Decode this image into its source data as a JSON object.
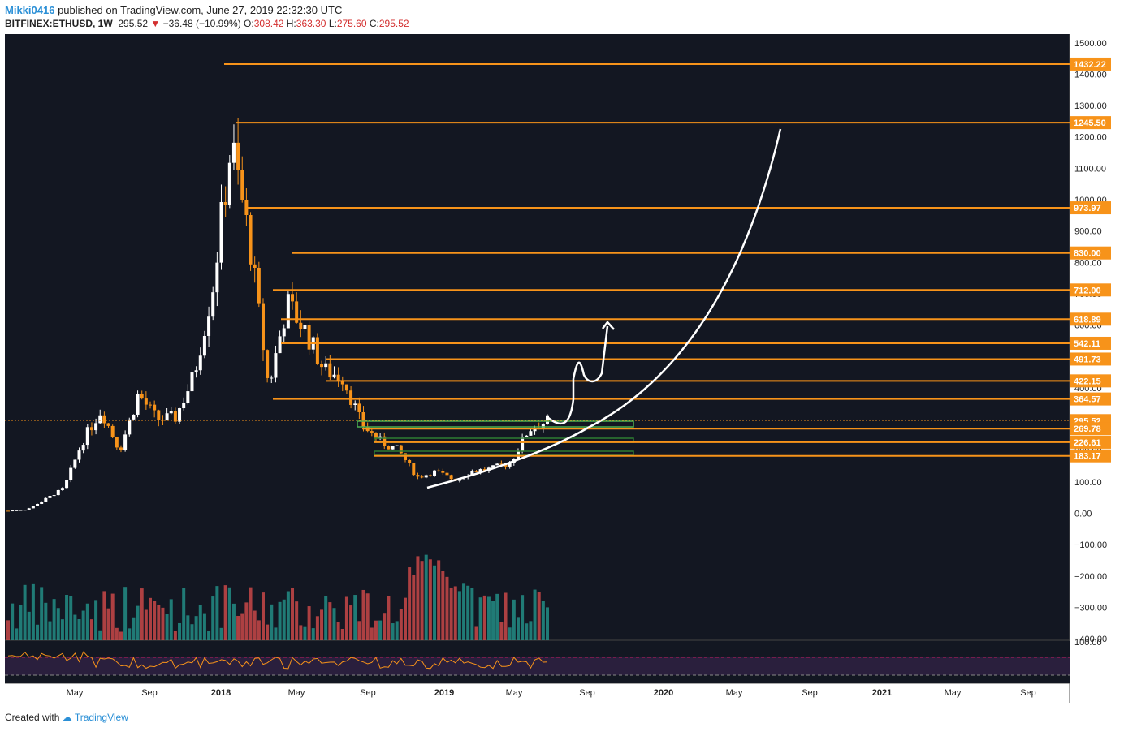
{
  "header": {
    "author": "Mikki0416",
    "published_text": "published on TradingView.com, June 27, 2019 22:32:30 UTC",
    "symbol": "BITFINEX:ETHUSD, 1W",
    "last": "295.52",
    "change": "−36.48 (−10.99%)",
    "o_label": "O:",
    "o_value": "308.42",
    "h_label": "H:",
    "h_value": "363.30",
    "l_label": "L:",
    "l_value": "275.60",
    "c_label": "C:",
    "c_value": "295.52"
  },
  "footer": {
    "created_with": "Created with",
    "brand": "TradingView"
  },
  "colors": {
    "background": "#131722",
    "up_candle": "#ffffff",
    "down_candle": "#f7931a",
    "level_line": "#f7931a",
    "vol_up": "#26a69a",
    "vol_down": "#ef5350",
    "zone": "#4caf50",
    "rsi_line": "#f7931a",
    "rsi_band": "#2a1f3d"
  },
  "chart_data": {
    "type": "candlestick",
    "title": "BITFINEX:ETHUSD, 1W",
    "price_axis_ticks": [
      "1500.00",
      "1400.00",
      "1300.00",
      "1200.00",
      "1100.00",
      "1000.00",
      "900.00",
      "800.00",
      "700.00",
      "600.00",
      "500.00",
      "400.00",
      "300.00",
      "200.00",
      "100.00",
      "0.00",
      "−100.00",
      "−200.00",
      "−300.00",
      "−400.00"
    ],
    "time_axis_ticks": [
      "May",
      "Sep",
      "2018",
      "May",
      "Sep",
      "2019",
      "May",
      "Sep",
      "2020",
      "May",
      "Sep",
      "2021",
      "May",
      "Sep"
    ],
    "ylim": [
      -400,
      1500
    ],
    "horizontal_levels": [
      "1432.22",
      "1245.50",
      "973.97",
      "830.00",
      "712.00",
      "618.89",
      "542.11",
      "491.73",
      "422.15",
      "364.57",
      "295.52",
      "269.78",
      "226.61",
      "183.17"
    ],
    "current_price": "295.52",
    "rsi_axis_label": "100.00",
    "close_series": [
      {
        "date": "2017-01",
        "close": 8
      },
      {
        "date": "2017-02",
        "close": 12
      },
      {
        "date": "2017-03",
        "close": 45
      },
      {
        "date": "2017-04",
        "close": 80
      },
      {
        "date": "2017-05",
        "close": 230
      },
      {
        "date": "2017-06",
        "close": 330
      },
      {
        "date": "2017-07",
        "close": 200
      },
      {
        "date": "2017-08",
        "close": 380
      },
      {
        "date": "2017-09",
        "close": 300
      },
      {
        "date": "2017-10",
        "close": 305
      },
      {
        "date": "2017-11",
        "close": 440
      },
      {
        "date": "2017-12",
        "close": 720
      },
      {
        "date": "2018-01",
        "close": 1180
      },
      {
        "date": "2018-02",
        "close": 860
      },
      {
        "date": "2018-03",
        "close": 400
      },
      {
        "date": "2018-04",
        "close": 670
      },
      {
        "date": "2018-05",
        "close": 580
      },
      {
        "date": "2018-06",
        "close": 455
      },
      {
        "date": "2018-07",
        "close": 435
      },
      {
        "date": "2018-08",
        "close": 285
      },
      {
        "date": "2018-09",
        "close": 230
      },
      {
        "date": "2018-10",
        "close": 200
      },
      {
        "date": "2018-11",
        "close": 115
      },
      {
        "date": "2018-12",
        "close": 133
      },
      {
        "date": "2019-01",
        "close": 107
      },
      {
        "date": "2019-02",
        "close": 135
      },
      {
        "date": "2019-03",
        "close": 142
      },
      {
        "date": "2019-04",
        "close": 162
      },
      {
        "date": "2019-05",
        "close": 268
      },
      {
        "date": "2019-06",
        "close": 295
      }
    ]
  }
}
